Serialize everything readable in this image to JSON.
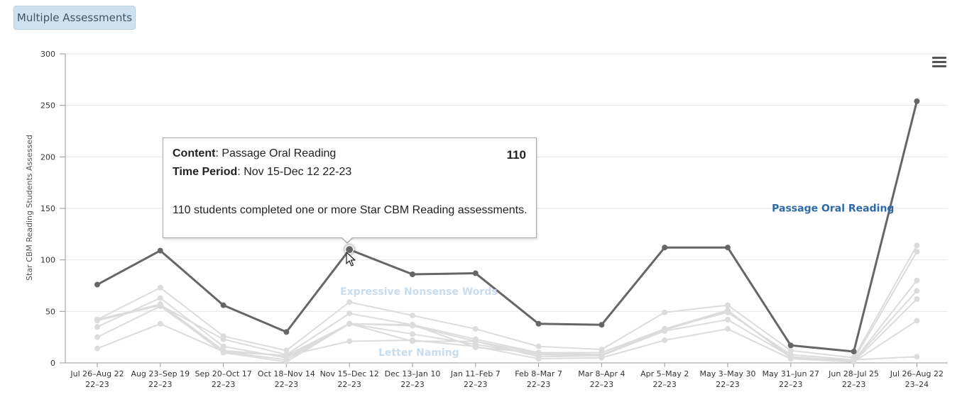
{
  "button": {
    "label": "Multiple Assessments"
  },
  "tooltip": {
    "content_label": "Content",
    "content_value": ": Passage Oral Reading",
    "period_label": "Time Period",
    "period_value": ": Nov 15-Dec 12 22-23",
    "value": "110",
    "description": "110 students completed one or more Star CBM Reading assessments."
  },
  "icons": {
    "menu": "hamburger-menu-icon",
    "cursor": "mouse-pointer-icon"
  },
  "chart_data": {
    "type": "line",
    "ylabel": "Star CBM Reading Students Assessed",
    "ylim": [
      0,
      300
    ],
    "yticks": [
      0,
      50,
      100,
      150,
      200,
      250,
      300
    ],
    "grid": true,
    "categories": [
      [
        "Jul 26–Aug 22",
        "22–23"
      ],
      [
        "Aug 23–Sep 19",
        "22–23"
      ],
      [
        "Sep 20–Oct 17",
        "22–23"
      ],
      [
        "Oct 18–Nov 14",
        "22–23"
      ],
      [
        "Nov 15–Dec 12",
        "22–23"
      ],
      [
        "Dec 13–Jan 10",
        "22–23"
      ],
      [
        "Jan 11–Feb 7",
        "22–23"
      ],
      [
        "Feb 8–Mar 7",
        "22–23"
      ],
      [
        "Mar 8–Apr 4",
        "22–23"
      ],
      [
        "Apr 5–May 2",
        "22–23"
      ],
      [
        "May 3–May 30",
        "22–23"
      ],
      [
        "May 31–Jun 27",
        "22–23"
      ],
      [
        "Jun 28–Jul 25",
        "22–23"
      ],
      [
        "Jul 26–Aug 22",
        "23–24"
      ]
    ],
    "series": [
      {
        "name": "Passage Oral Reading",
        "highlighted": true,
        "color": "#666666",
        "label_color": "#2e6aa8",
        "values": [
          76,
          109,
          56,
          30,
          110,
          86,
          87,
          38,
          37,
          112,
          112,
          17,
          11,
          254
        ]
      },
      {
        "name": "Expressive Nonsense Words",
        "highlighted": false,
        "color": "#dcdcdc",
        "label_color": "#c7dcef",
        "values": [
          42,
          73,
          26,
          12,
          59,
          46,
          33,
          16,
          13,
          49,
          56,
          12,
          5,
          114
        ]
      },
      {
        "name": "Letter Naming",
        "highlighted": false,
        "color": "#dcdcdc",
        "label_color": "#c7dcef",
        "values": [
          41,
          56,
          23,
          8,
          48,
          37,
          23,
          10,
          10,
          33,
          49,
          8,
          3,
          108
        ]
      },
      {
        "name": "",
        "highlighted": false,
        "color": "#dcdcdc",
        "values": [
          35,
          63,
          16,
          5,
          38,
          28,
          18,
          8,
          7,
          31,
          42,
          6,
          2,
          80
        ]
      },
      {
        "name": "",
        "highlighted": false,
        "color": "#dcdcdc",
        "values": [
          25,
          55,
          11,
          3,
          38,
          36,
          21,
          9,
          8,
          32,
          50,
          6,
          1,
          62
        ]
      },
      {
        "name": "",
        "highlighted": false,
        "color": "#dcdcdc",
        "values": [
          14,
          38,
          11,
          7,
          21,
          22,
          16,
          4,
          5,
          22,
          33,
          4,
          1,
          41
        ]
      },
      {
        "name": "",
        "highlighted": false,
        "color": "#dcdcdc",
        "values": [
          42,
          57,
          12,
          7,
          38,
          37,
          15,
          10,
          8,
          33,
          51,
          5,
          3,
          6
        ]
      },
      {
        "name": "",
        "highlighted": false,
        "color": "#dcdcdc",
        "values": [
          42,
          56,
          10,
          1,
          38,
          21,
          21,
          6,
          7,
          33,
          51,
          5,
          2,
          70
        ]
      }
    ],
    "hovered": {
      "series": "Passage Oral Reading",
      "index": 4
    }
  }
}
